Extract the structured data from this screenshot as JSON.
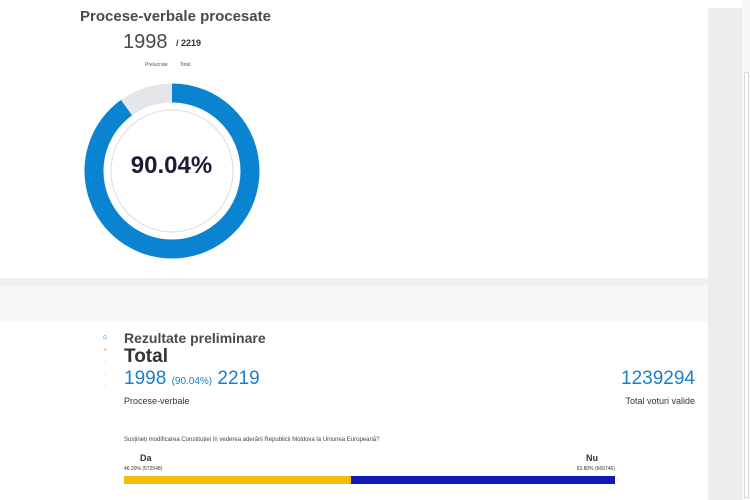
{
  "processed": {
    "title": "Procese-verbale procesate",
    "count": "1998",
    "total": "/ 2219",
    "legend_processed": "Prelucrate",
    "legend_total": "Total",
    "percent_label": "90.04%",
    "fraction": 0.9004,
    "colors": {
      "processed": "#0a84d0",
      "remaining": "#e4e6ea"
    }
  },
  "results": {
    "title": "Rezultate preliminare",
    "subtitle": "Total",
    "count": "1998",
    "count_pct": "(90.04%)",
    "total": "2219",
    "pv_label": "Procese-verbale",
    "valid_votes": "1239294",
    "valid_label": "Total voturi valide",
    "question": "Susțineți modificarea Constituției în vederea aderării Republicii Moldova la Uniunea Europeană?",
    "options": [
      {
        "label": "Da",
        "percent_text": "46.20% (572548)",
        "share": 0.462,
        "color": "#f5b90f"
      },
      {
        "label": "Nu",
        "percent_text": "53.80% (666746)",
        "share": 0.538,
        "color": "#1418b8"
      }
    ]
  },
  "nav_icons": [
    "home-icon",
    "plus-icon",
    "dot-icon",
    "dot-icon",
    "dot-icon"
  ]
}
